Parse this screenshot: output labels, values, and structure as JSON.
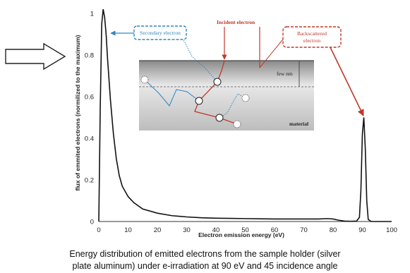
{
  "chart_data": {
    "type": "line",
    "xlabel": "Electron emission energy (eV)",
    "ylabel": "flux of emmited electrons (normilized to the maximum)",
    "xlim": [
      0,
      100
    ],
    "ylim": [
      0,
      1.05
    ],
    "x_ticks": [
      0,
      10,
      20,
      30,
      40,
      50,
      60,
      70,
      80,
      90,
      100
    ],
    "y_ticks": [
      0,
      0.2,
      0.4,
      0.6,
      0.8,
      1
    ],
    "y_tick_labels": [
      "0",
      "0.2",
      "0.4",
      "0.6",
      "0.8",
      "1"
    ],
    "grid": false,
    "series": [
      {
        "color": "#111111",
        "x": [
          0,
          0.5,
          1,
          1.5,
          2,
          2.5,
          3,
          4,
          5,
          6,
          7,
          8,
          10,
          12,
          15,
          20,
          25,
          30,
          35,
          40,
          45,
          50,
          55,
          60,
          65,
          70,
          75,
          78,
          80,
          82,
          84,
          86,
          88,
          89,
          89.5,
          90,
          90.5,
          91,
          91.5,
          92,
          93,
          95,
          100
        ],
        "y": [
          0.0,
          0.55,
          0.95,
          1.02,
          0.98,
          0.9,
          0.78,
          0.58,
          0.42,
          0.3,
          0.22,
          0.17,
          0.12,
          0.09,
          0.06,
          0.04,
          0.028,
          0.022,
          0.018,
          0.016,
          0.015,
          0.014,
          0.013,
          0.012,
          0.012,
          0.012,
          0.012,
          0.014,
          0.012,
          0.006,
          0.002,
          0.001,
          0.002,
          0.02,
          0.15,
          0.42,
          0.5,
          0.35,
          0.1,
          0.01,
          0.0,
          0.0,
          0.0
        ]
      }
    ]
  },
  "inset": {
    "labels": {
      "secondary": "Secondary electron",
      "incident": "Incident electron",
      "backscattered_line1": "Backscattered",
      "backscattered_line2": "electron",
      "depth": "few nm",
      "material": "material"
    },
    "colors": {
      "incident": "#c0392b",
      "secondary": "#2e86c1",
      "backscattered": "#c0392b",
      "material_top": "#7a7a7a",
      "material_bottom": "#cfcfcf"
    }
  },
  "caption": {
    "line1": "Energy distribution of emitted electrons from the sample holder (silver",
    "line2": "plate aluminum) under e-irradiation at 90 eV and 45 incidence angle"
  }
}
